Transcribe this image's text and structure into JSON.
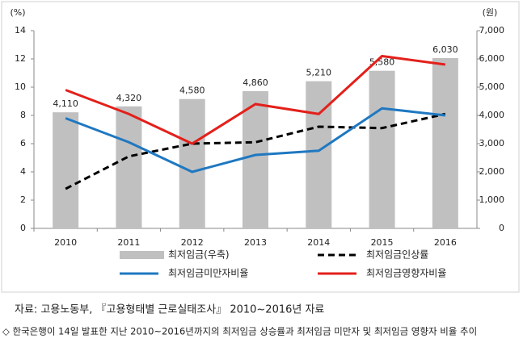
{
  "chart_data": {
    "type": "combo",
    "y_unit": "(%)",
    "y2_unit": "(원)",
    "categories": [
      "2010",
      "2011",
      "2012",
      "2013",
      "2014",
      "2015",
      "2016"
    ],
    "ylim": [
      0,
      14
    ],
    "yticks": [
      0,
      2,
      4,
      6,
      8,
      10,
      12,
      14
    ],
    "y2lim": [
      0,
      7000
    ],
    "y2ticks": [
      0,
      {
        "value": 1000,
        "label": "1,000"
      },
      {
        "value": 2000,
        "label": "2,000"
      },
      {
        "value": 3000,
        "label": "3,000"
      },
      {
        "value": 4000,
        "label": "4,000"
      },
      {
        "value": 5000,
        "label": "5,000"
      },
      {
        "value": 6000,
        "label": "6,000"
      },
      {
        "value": 7000,
        "label": "7,000"
      }
    ],
    "series": [
      {
        "name": "최저임금(우축)",
        "type": "bar",
        "axis": "y2",
        "color": "#c0c0c0",
        "values": [
          4110,
          4320,
          4580,
          4860,
          5210,
          5580,
          6030
        ],
        "value_labels": [
          "4,110",
          "4,320",
          "4,580",
          "4,860",
          "5,210",
          "5,580",
          "6,030"
        ]
      },
      {
        "name": "최저임금인상률",
        "type": "line",
        "color": "#000000",
        "dashed": true,
        "values": [
          2.8,
          5.1,
          6.0,
          6.1,
          7.2,
          7.1,
          8.1
        ]
      },
      {
        "name": "최저임금미만자비율",
        "type": "line",
        "color": "#1f78c1",
        "values": [
          7.8,
          6.1,
          4.0,
          5.2,
          5.5,
          8.5,
          8.0
        ]
      },
      {
        "name": "최저임금영향자비율",
        "type": "line",
        "color": "#e3201b",
        "values": [
          9.8,
          8.1,
          6.0,
          8.8,
          8.1,
          12.2,
          11.6
        ]
      }
    ]
  },
  "source": "자료: 고용노동부, 『고용형태별 근로실태조사』 2010~2016년 자료",
  "caption": "◇ 한국은행이 14일 발표한 지난 2010~2016년까지의 최저임금 상승률과 최저임금 미만자 및 최저임금 영향자 비율 추이"
}
